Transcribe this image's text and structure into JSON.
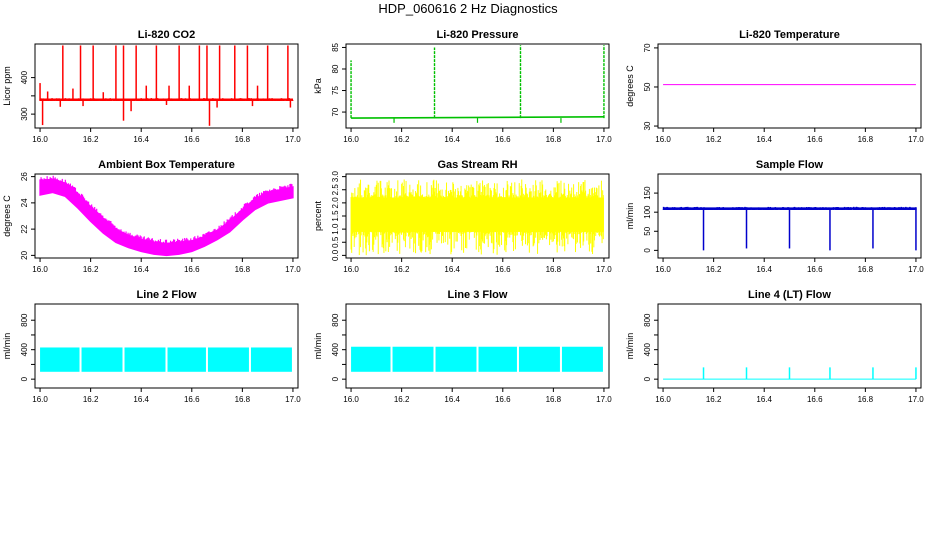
{
  "page": {
    "title": "HDP_060616  2 Hz Diagnostics"
  },
  "chart_data": [
    {
      "type": "line",
      "id": "co2",
      "title": "Li-820 CO2",
      "xlabel": "",
      "ylabel": "Licor ppm",
      "color": "#ff0000",
      "xlim": [
        15.98,
        17.02
      ],
      "ylim": [
        262,
        492
      ],
      "xticks": [
        16.0,
        16.2,
        16.4,
        16.6,
        16.8,
        17.0
      ],
      "xtick_labels": [
        "16.0",
        "16.2",
        "16.4",
        "16.6",
        "16.8",
        "17.0"
      ],
      "yticks": [
        300,
        350,
        400
      ],
      "ytick_labels": [
        "300",
        "",
        "400"
      ],
      "series": [
        {
          "baseline": 340,
          "band": [
            336,
            344
          ],
          "spikes_up": [
            {
              "x": 16.0,
              "y": 385
            },
            {
              "x": 16.03,
              "y": 362
            },
            {
              "x": 16.09,
              "y": 488
            },
            {
              "x": 16.13,
              "y": 370
            },
            {
              "x": 16.16,
              "y": 488
            },
            {
              "x": 16.21,
              "y": 488
            },
            {
              "x": 16.25,
              "y": 360
            },
            {
              "x": 16.3,
              "y": 488
            },
            {
              "x": 16.33,
              "y": 488
            },
            {
              "x": 16.38,
              "y": 488
            },
            {
              "x": 16.42,
              "y": 378
            },
            {
              "x": 16.46,
              "y": 488
            },
            {
              "x": 16.51,
              "y": 378
            },
            {
              "x": 16.55,
              "y": 488
            },
            {
              "x": 16.59,
              "y": 378
            },
            {
              "x": 16.63,
              "y": 488
            },
            {
              "x": 16.66,
              "y": 488
            },
            {
              "x": 16.71,
              "y": 488
            },
            {
              "x": 16.77,
              "y": 488
            },
            {
              "x": 16.82,
              "y": 488
            },
            {
              "x": 16.86,
              "y": 378
            },
            {
              "x": 16.9,
              "y": 488
            },
            {
              "x": 16.98,
              "y": 488
            }
          ],
          "spikes_down": [
            {
              "x": 16.01,
              "y": 270
            },
            {
              "x": 16.08,
              "y": 320
            },
            {
              "x": 16.17,
              "y": 322
            },
            {
              "x": 16.33,
              "y": 282
            },
            {
              "x": 16.36,
              "y": 308
            },
            {
              "x": 16.5,
              "y": 325
            },
            {
              "x": 16.67,
              "y": 268
            },
            {
              "x": 16.7,
              "y": 318
            },
            {
              "x": 16.84,
              "y": 322
            },
            {
              "x": 16.99,
              "y": 318
            }
          ]
        }
      ]
    },
    {
      "type": "line",
      "id": "pressure",
      "title": "Li-820 Pressure",
      "xlabel": "",
      "ylabel": "kPa",
      "color": "#00c000",
      "xlim": [
        15.98,
        17.02
      ],
      "ylim": [
        66.3,
        85.8
      ],
      "xticks": [
        16.0,
        16.2,
        16.4,
        16.6,
        16.8,
        17.0
      ],
      "xtick_labels": [
        "16.0",
        "16.2",
        "16.4",
        "16.6",
        "16.8",
        "17.0"
      ],
      "yticks": [
        70,
        75,
        80,
        85
      ],
      "ytick_labels": [
        "70",
        "75",
        "80",
        "85"
      ],
      "series": [
        {
          "baseline_start": 68.6,
          "baseline_end": 68.9,
          "spikes_up": [
            {
              "x": 16.0,
              "y": 82
            },
            {
              "x": 16.33,
              "y": 85
            },
            {
              "x": 16.67,
              "y": 85.5
            },
            {
              "x": 17.0,
              "y": 85.5
            }
          ],
          "spikes_down": [
            {
              "x": 16.17,
              "y": 67.5
            },
            {
              "x": 16.5,
              "y": 67.5
            },
            {
              "x": 16.83,
              "y": 67.5
            }
          ]
        }
      ]
    },
    {
      "type": "line",
      "id": "temperature",
      "title": "Li-820 Temperature",
      "xlabel": "",
      "ylabel": "degrees C",
      "color": "#ff00ff",
      "xlim": [
        15.98,
        17.02
      ],
      "ylim": [
        29,
        72
      ],
      "xticks": [
        16.0,
        16.2,
        16.4,
        16.6,
        16.8,
        17.0
      ],
      "xtick_labels": [
        "16.0",
        "16.2",
        "16.4",
        "16.6",
        "16.8",
        "17.0"
      ],
      "yticks": [
        30,
        50,
        70
      ],
      "ytick_labels": [
        "30",
        "50",
        "70"
      ],
      "series": [
        {
          "x": [
            16.0,
            17.0
          ],
          "y": [
            51.2,
            51.2
          ]
        }
      ]
    },
    {
      "type": "area",
      "id": "ambient",
      "title": "Ambient Box Temperature",
      "xlabel": "",
      "ylabel": "degrees C",
      "color": "#ff00ff",
      "xlim": [
        15.98,
        17.02
      ],
      "ylim": [
        19.8,
        26.2
      ],
      "xticks": [
        16.0,
        16.2,
        16.4,
        16.6,
        16.8,
        17.0
      ],
      "xtick_labels": [
        "16.0",
        "16.2",
        "16.4",
        "16.6",
        "16.8",
        "17.0"
      ],
      "yticks": [
        20,
        22,
        24,
        26
      ],
      "ytick_labels": [
        "20",
        "22",
        "24",
        "26"
      ],
      "series": [
        {
          "x": [
            16.0,
            16.05,
            16.1,
            16.15,
            16.2,
            16.25,
            16.3,
            16.35,
            16.4,
            16.45,
            16.5,
            16.55,
            16.6,
            16.65,
            16.7,
            16.75,
            16.8,
            16.85,
            16.9,
            16.95,
            17.0
          ],
          "upper": [
            25.7,
            25.8,
            25.5,
            24.7,
            23.7,
            22.8,
            22.0,
            21.5,
            21.2,
            21.0,
            20.9,
            21.0,
            21.1,
            21.4,
            21.9,
            22.6,
            23.5,
            24.3,
            24.8,
            25.0,
            25.2
          ],
          "lower": [
            24.6,
            24.8,
            24.5,
            23.6,
            22.6,
            21.7,
            21.0,
            20.6,
            20.3,
            20.1,
            20.0,
            20.1,
            20.3,
            20.7,
            21.2,
            21.8,
            22.7,
            23.5,
            24.0,
            24.2,
            24.4
          ]
        }
      ]
    },
    {
      "type": "area",
      "id": "rh",
      "title": "Gas Stream RH",
      "xlabel": "",
      "ylabel": "percent",
      "color": "#ffff00",
      "xlim": [
        15.98,
        17.02
      ],
      "ylim": [
        -0.1,
        3.1
      ],
      "xticks": [
        16.0,
        16.2,
        16.4,
        16.6,
        16.8,
        17.0
      ],
      "xtick_labels": [
        "16.0",
        "16.2",
        "16.4",
        "16.6",
        "16.8",
        "17.0"
      ],
      "yticks": [
        0.0,
        0.5,
        1.0,
        1.5,
        2.0,
        2.5,
        3.0
      ],
      "ytick_labels": [
        "0.0",
        "0.5",
        "1.0",
        "1.5",
        "2.0",
        "2.5",
        "3.0"
      ],
      "series": [
        {
          "band": [
            0.9,
            2.2
          ],
          "peak_max": 2.9,
          "dip_min": 0.0
        }
      ]
    },
    {
      "type": "line",
      "id": "sample_flow",
      "title": "Sample Flow",
      "xlabel": "",
      "ylabel": "ml/min",
      "color": "#0000cc",
      "xlim": [
        15.98,
        17.02
      ],
      "ylim": [
        -20,
        200
      ],
      "xticks": [
        16.0,
        16.2,
        16.4,
        16.6,
        16.8,
        17.0
      ],
      "xtick_labels": [
        "16.0",
        "16.2",
        "16.4",
        "16.6",
        "16.8",
        "17.0"
      ],
      "yticks": [
        0,
        50,
        100,
        150
      ],
      "ytick_labels": [
        "0",
        "50",
        "100",
        "150"
      ],
      "series": [
        {
          "baseline": 110,
          "band": [
            106,
            114
          ],
          "spikes_down": [
            {
              "x": 16.16,
              "y": 0
            },
            {
              "x": 16.33,
              "y": 5
            },
            {
              "x": 16.5,
              "y": 5
            },
            {
              "x": 16.66,
              "y": 0
            },
            {
              "x": 16.83,
              "y": 5
            },
            {
              "x": 17.0,
              "y": 0
            }
          ]
        }
      ]
    },
    {
      "type": "area",
      "id": "line2",
      "title": "Line 2 Flow",
      "xlabel": "",
      "ylabel": "ml/min",
      "color": "#00ffff",
      "xlim": [
        15.98,
        17.02
      ],
      "ylim": [
        -120,
        1020
      ],
      "xticks": [
        16.0,
        16.2,
        16.4,
        16.6,
        16.8,
        17.0
      ],
      "xtick_labels": [
        "16.0",
        "16.2",
        "16.4",
        "16.6",
        "16.8",
        "17.0"
      ],
      "yticks": [
        0,
        200,
        400,
        600,
        800
      ],
      "ytick_labels": [
        "0",
        "",
        "400",
        "",
        "800"
      ],
      "series": [
        {
          "band": [
            100,
            430
          ],
          "gaps": [
            16.16,
            16.33,
            16.5,
            16.66,
            16.83
          ]
        }
      ]
    },
    {
      "type": "area",
      "id": "line3",
      "title": "Line 3 Flow",
      "xlabel": "",
      "ylabel": "ml/min",
      "color": "#00ffff",
      "xlim": [
        15.98,
        17.02
      ],
      "ylim": [
        -120,
        1020
      ],
      "xticks": [
        16.0,
        16.2,
        16.4,
        16.6,
        16.8,
        17.0
      ],
      "xtick_labels": [
        "16.0",
        "16.2",
        "16.4",
        "16.6",
        "16.8",
        "17.0"
      ],
      "yticks": [
        0,
        200,
        400,
        600,
        800
      ],
      "ytick_labels": [
        "0",
        "",
        "400",
        "",
        "800"
      ],
      "series": [
        {
          "band": [
            100,
            440
          ],
          "gaps": [
            16.16,
            16.33,
            16.5,
            16.66,
            16.83
          ]
        }
      ]
    },
    {
      "type": "line",
      "id": "line4",
      "title": "Line 4 (LT) Flow",
      "xlabel": "",
      "ylabel": "ml/min",
      "color": "#00ffff",
      "xlim": [
        15.98,
        17.02
      ],
      "ylim": [
        -120,
        1020
      ],
      "xticks": [
        16.0,
        16.2,
        16.4,
        16.6,
        16.8,
        17.0
      ],
      "xtick_labels": [
        "16.0",
        "16.2",
        "16.4",
        "16.6",
        "16.8",
        "17.0"
      ],
      "yticks": [
        0,
        200,
        400,
        600,
        800
      ],
      "ytick_labels": [
        "0",
        "",
        "400",
        "",
        "800"
      ],
      "series": [
        {
          "baseline": 0,
          "spikes_up": [
            {
              "x": 16.16,
              "y": 160
            },
            {
              "x": 16.33,
              "y": 160
            },
            {
              "x": 16.5,
              "y": 160
            },
            {
              "x": 16.66,
              "y": 160
            },
            {
              "x": 16.83,
              "y": 160
            },
            {
              "x": 17.0,
              "y": 160
            }
          ]
        }
      ]
    }
  ]
}
